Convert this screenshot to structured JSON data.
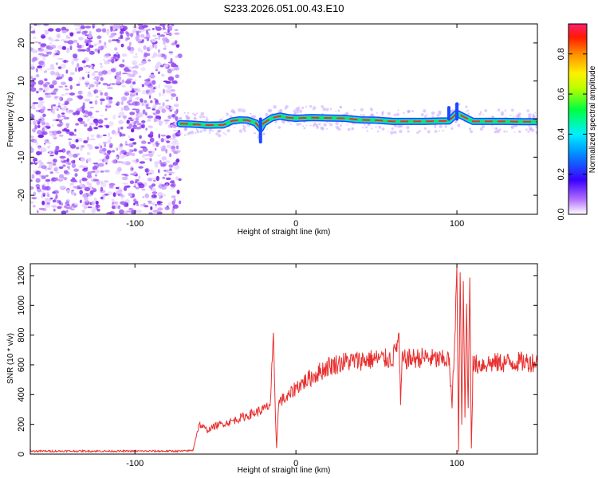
{
  "title": "S233.2026.051.00.43.E10",
  "colors": {
    "snr_line": "#e8302f",
    "band_core": "#e5332a",
    "band_mid": "#19e26a",
    "band_outer": "#1a47ff",
    "noise": "#8a3cf0",
    "frame": "#000000"
  },
  "chart_data": [
    {
      "type": "heatmap",
      "name": "spectrogram",
      "xlabel": "Height of straight line (km)",
      "ylabel": "Frequency (Hz)",
      "xlim": [
        -165,
        150
      ],
      "ylim": [
        -25,
        25
      ],
      "x_ticks": [
        -100,
        0,
        100
      ],
      "x_tick_labels": [
        "-100",
        "0",
        "100"
      ],
      "y_ticks": [
        -20,
        -10,
        0,
        10,
        20
      ],
      "y_tick_labels": [
        "-20",
        "-10",
        "0",
        "10",
        "20"
      ],
      "grid": false,
      "colorbar": {
        "label": "Normalized spectral amplitude",
        "range": [
          0,
          0.95
        ],
        "ticks": [
          0.0,
          0.2,
          0.4,
          0.6,
          0.8
        ],
        "tick_labels": [
          "0.0",
          "0.2",
          "0.4",
          "0.6",
          "0.8"
        ],
        "colormap": "rainbow (white-violet-blue-cyan-green-yellow-red)"
      },
      "noise_region_x": [
        -165,
        -72
      ],
      "band_center": {
        "x": [
          -72,
          -65,
          -55,
          -45,
          -40,
          -35,
          -30,
          -25,
          -22,
          -20,
          -15,
          -10,
          -5,
          0,
          10,
          20,
          30,
          40,
          50,
          60,
          70,
          80,
          90,
          95,
          100,
          110,
          120,
          130,
          140,
          150
        ],
        "freq": [
          -1.2,
          -1.3,
          -1.6,
          -1.5,
          -0.5,
          -0.2,
          -0.3,
          -1.0,
          -2.5,
          -1.0,
          0.3,
          0.8,
          0.4,
          0.2,
          0.4,
          0.3,
          0.2,
          -0.2,
          -0.3,
          -0.6,
          -0.6,
          -0.6,
          -0.5,
          -0.5,
          1.5,
          -0.6,
          -0.6,
          -0.6,
          -0.7,
          -0.7
        ]
      }
    },
    {
      "type": "line",
      "name": "snr",
      "xlabel": "Height of straight line (km)",
      "ylabel": "SNR (10 * v/v)",
      "xlim": [
        -165,
        150
      ],
      "ylim": [
        0,
        1280
      ],
      "x_ticks": [
        -100,
        0,
        100
      ],
      "x_tick_labels": [
        "-100",
        "0",
        "100"
      ],
      "y_ticks": [
        0,
        200,
        400,
        600,
        800,
        1000,
        1200
      ],
      "y_tick_labels": [
        "0",
        "200",
        "400",
        "600",
        "800",
        "1000",
        "1200"
      ],
      "grid": false,
      "series": [
        {
          "x": [
            -165,
            -140,
            -120,
            -100,
            -80,
            -70,
            -64,
            -62,
            -60,
            -55,
            -50,
            -40,
            -30,
            -20,
            -16,
            -14,
            -13,
            -12,
            -11,
            -10,
            -5,
            0,
            10,
            20,
            30,
            40,
            50,
            60,
            64,
            65,
            66,
            70,
            80,
            90,
            95,
            97,
            99,
            100,
            101,
            102,
            103,
            104,
            105,
            106,
            107,
            108,
            109,
            110,
            120,
            130,
            140,
            150
          ],
          "y": [
            20,
            20,
            20,
            20,
            20,
            20,
            25,
            120,
            200,
            160,
            190,
            220,
            260,
            300,
            330,
            760,
            340,
            40,
            310,
            360,
            380,
            450,
            520,
            590,
            620,
            630,
            640,
            640,
            780,
            330,
            630,
            640,
            650,
            630,
            640,
            320,
            900,
            1270,
            10,
            1250,
            200,
            1100,
            250,
            1000,
            300,
            1230,
            40,
            600,
            610,
            615,
            620,
            620
          ]
        }
      ]
    }
  ]
}
